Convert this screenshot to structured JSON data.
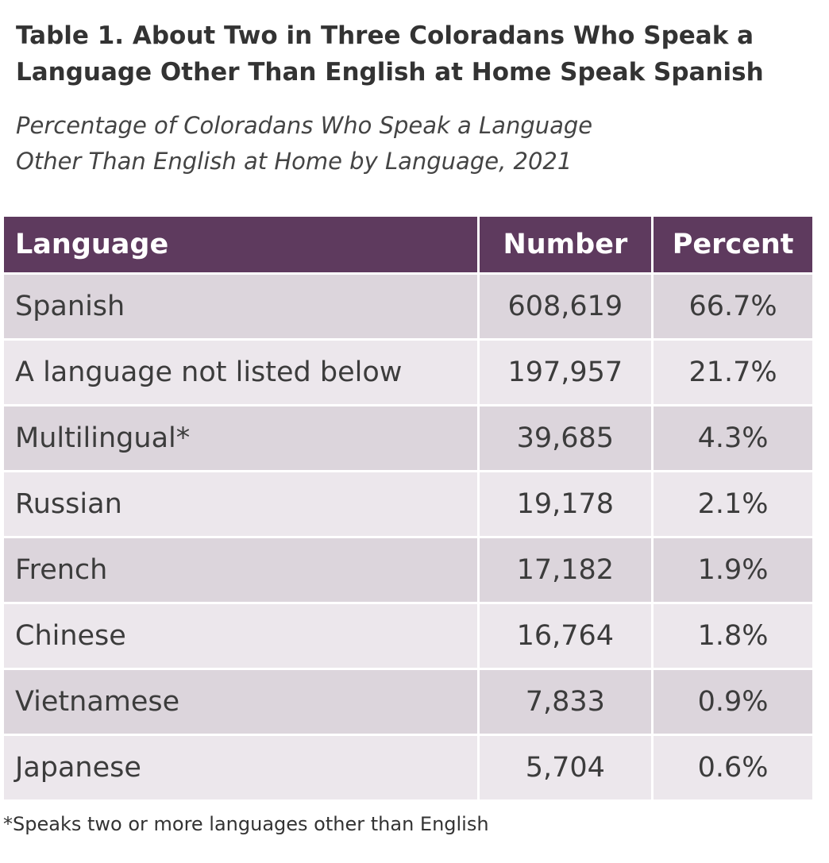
{
  "header": {
    "title": "Table 1. About Two in Three Coloradans Who Speak a Language Other Than English at Home Speak Spanish",
    "subtitle": "Percentage of Coloradans Who Speak a Language Other Than English at Home by Language, 2021"
  },
  "table": {
    "columns": [
      "Language",
      "Number",
      "Percent"
    ],
    "rows": [
      [
        "Spanish",
        "608,619",
        "66.7%"
      ],
      [
        "A language not listed below",
        "197,957",
        "21.7%"
      ],
      [
        "Multilingual*",
        "39,685",
        "4.3%"
      ],
      [
        "Russian",
        "19,178",
        "2.1%"
      ],
      [
        "French",
        "17,182",
        "1.9%"
      ],
      [
        "Chinese",
        "16,764",
        "1.8%"
      ],
      [
        "Vietnamese",
        "7,833",
        "0.9%"
      ],
      [
        "Japanese",
        "5,704",
        "0.6%"
      ]
    ]
  },
  "footnote": "*Speaks two or more languages other than English"
}
